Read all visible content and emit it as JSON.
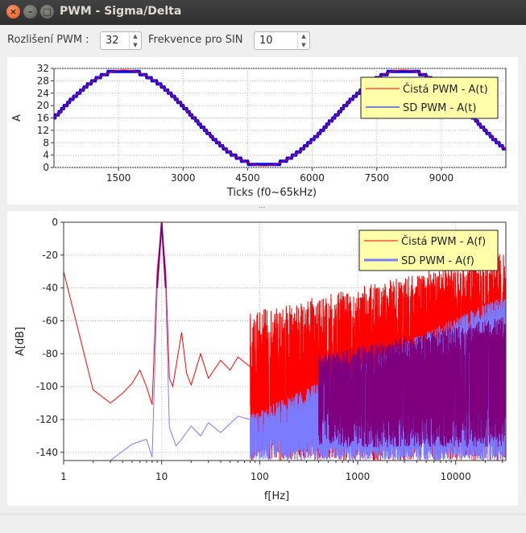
{
  "window": {
    "title": "PWM - Sigma/Delta",
    "close_glyph": "×",
    "min_glyph": "–",
    "max_glyph": "□"
  },
  "controls": {
    "pwm_label": "Rozlišení PWM :",
    "pwm_value": "32",
    "freq_label": "Frekvence pro SIN",
    "freq_value": "10",
    "up_glyph": "▲",
    "down_glyph": "▼"
  },
  "colors": {
    "red": "#ff0000",
    "blue": "#0000ff",
    "light_blue": "#7b7bff",
    "purple": "#7f007f",
    "legend_bg": "#ffffaa"
  },
  "chart_data": [
    {
      "type": "line",
      "ylabel": "A",
      "xlabel": "Ticks (f0~65kHz)",
      "xlim": [
        0,
        10500
      ],
      "ylim": [
        0,
        32
      ],
      "x_ticks": [
        "1500",
        "3000",
        "4500",
        "6000",
        "7500",
        "9000"
      ],
      "y_ticks": [
        "0",
        "4",
        "8",
        "12",
        "16",
        "20",
        "24",
        "28",
        "32"
      ],
      "grid": true,
      "legend_position": "top-right",
      "series": [
        {
          "name": "Čistá PWM - A(t)",
          "color": "#ff0000",
          "amplitude": 15.5,
          "offset": 16,
          "period_ticks": 6500,
          "phase_x_at_max": 1625
        },
        {
          "name": "SD PWM - A(t)",
          "color": "#0000ff",
          "amplitude": 15.5,
          "offset": 16,
          "period_ticks": 6500,
          "phase_x_at_max": 1625
        }
      ]
    },
    {
      "type": "line",
      "ylabel": "A[dB]",
      "xlabel": "f[Hz]",
      "xscale": "log",
      "xlim": [
        1,
        32500
      ],
      "ylim": [
        -145,
        0
      ],
      "x_ticks": [
        "1",
        "10",
        "100",
        "1000",
        "10000"
      ],
      "y_ticks": [
        "0",
        "-20",
        "-40",
        "-60",
        "-80",
        "-100",
        "-120",
        "-140"
      ],
      "grid": true,
      "legend_position": "top-right",
      "series": [
        {
          "name": "Čistá PWM - A(f)",
          "color": "#ff0000",
          "points": [
            [
              1,
              -30
            ],
            [
              2,
              -102
            ],
            [
              3,
              -110
            ],
            [
              4,
              -104
            ],
            [
              5,
              -98
            ],
            [
              6,
              -90
            ],
            [
              7,
              -100
            ],
            [
              8,
              -111
            ],
            [
              9,
              -30
            ],
            [
              10,
              0
            ],
            [
              11,
              -30
            ],
            [
              12,
              -95
            ],
            [
              13,
              -100
            ],
            [
              14,
              -88
            ],
            [
              16,
              -67
            ],
            [
              18,
              -92
            ],
            [
              20,
              -99
            ],
            [
              25,
              -80
            ],
            [
              30,
              -95
            ],
            [
              40,
              -84
            ],
            [
              50,
              -90
            ],
            [
              60,
              -82
            ],
            [
              80,
              -88
            ]
          ]
        },
        {
          "name": "SD PWM - A(f)",
          "color": "#7b7bff",
          "points": [
            [
              3,
              -145
            ],
            [
              5,
              -135
            ],
            [
              7,
              -132
            ],
            [
              8,
              -143
            ],
            [
              9,
              -40
            ],
            [
              10,
              0
            ],
            [
              11,
              -40
            ],
            [
              12,
              -125
            ],
            [
              14,
              -136
            ],
            [
              16,
              -132
            ],
            [
              20,
              -124
            ],
            [
              25,
              -130
            ],
            [
              30,
              -122
            ],
            [
              40,
              -128
            ],
            [
              60,
              -118
            ],
            [
              80,
              -120
            ]
          ]
        }
      ]
    }
  ]
}
